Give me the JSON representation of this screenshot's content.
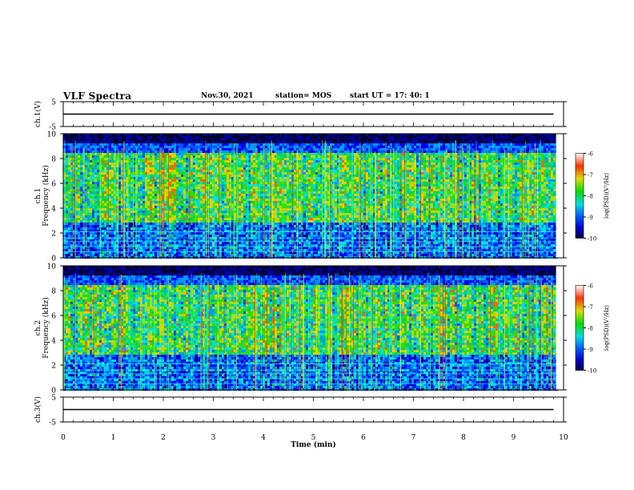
{
  "header": {
    "title": "VLF Spectra",
    "date": "Nov.30, 2021",
    "station": "station= MOS",
    "start": "start  UT =  17: 40: 1"
  },
  "chart_data": [
    {
      "type": "line",
      "panel": "ch1-waveform",
      "ylabel": "ch.1(V)",
      "ylim": [
        -5,
        5
      ],
      "yticks": [
        "5",
        "-5"
      ],
      "series": [
        {
          "x": [
            0,
            9.8
          ],
          "values": [
            0,
            0
          ]
        }
      ]
    },
    {
      "type": "heatmap",
      "panel": "ch1-spectrogram",
      "ylabel": [
        "ch.1",
        "Frequency (kHz)"
      ],
      "ylim": [
        0,
        10
      ],
      "yticks": [
        "0",
        "2",
        "4",
        "6",
        "8",
        "10"
      ],
      "colorbar": {
        "label": "log(PSD)(V²/Hz)",
        "range": [
          -10,
          -6
        ],
        "ticks": [
          "-6",
          "-7",
          "-8",
          "-9",
          "-10"
        ]
      }
    },
    {
      "type": "heatmap",
      "panel": "ch2-spectrogram",
      "ylabel": [
        "ch.2",
        "Frequency (kHz)"
      ],
      "ylim": [
        0,
        10
      ],
      "yticks": [
        "0",
        "2",
        "4",
        "6",
        "8",
        "10"
      ],
      "colorbar": {
        "label": "log(PSD)(V²/Hz)",
        "range": [
          -10,
          -6
        ],
        "ticks": [
          "-6",
          "-7",
          "-8",
          "-9",
          "-10"
        ]
      }
    },
    {
      "type": "line",
      "panel": "ch3-waveform",
      "ylabel": "ch.3(V)",
      "ylim": [
        -5,
        5
      ],
      "yticks": [
        "5",
        "-5"
      ],
      "series": [
        {
          "x": [
            0,
            9.8
          ],
          "values": [
            0,
            0
          ]
        }
      ]
    }
  ],
  "xaxis": {
    "label": "Time  (min)",
    "range": [
      0,
      10
    ],
    "ticks": [
      "0",
      "1",
      "2",
      "3",
      "4",
      "5",
      "6",
      "7",
      "8",
      "9",
      "10"
    ]
  },
  "colors": {
    "background": "#ffffff",
    "axis": "#000000",
    "no_data": "#000000"
  }
}
